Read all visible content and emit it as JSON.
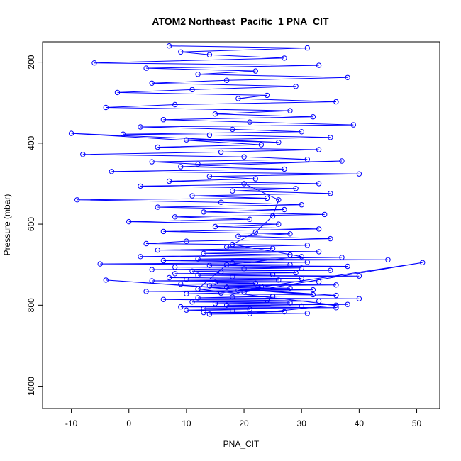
{
  "chart_data": {
    "type": "scatter",
    "title": "ATOM2 Northeast_Pacific_1 PNA_CIT",
    "xlabel": "PNA_CIT",
    "ylabel": "Pressure (mbar)",
    "xlim": [
      -15,
      54
    ],
    "ylim": [
      1055,
      150
    ],
    "y_reversed": true,
    "xticks": [
      -10,
      0,
      10,
      20,
      30,
      40,
      50
    ],
    "yticks": [
      200,
      400,
      600,
      800,
      1000
    ],
    "marker": "open-circle",
    "connect_points": true,
    "series_color": "#0000ff",
    "grid": false,
    "series": [
      {
        "x": [
          7,
          31,
          9,
          14,
          27,
          -6,
          33,
          3,
          22,
          12,
          38,
          17,
          4,
          29,
          11,
          -2,
          24,
          19,
          36,
          8,
          -4,
          28,
          15,
          32,
          6,
          21,
          39,
          2,
          18,
          30,
          -1,
          14,
          35,
          10,
          26,
          -10,
          23,
          5,
          33,
          16,
          -8,
          20,
          31,
          4,
          12,
          37,
          9,
          27,
          -3,
          40,
          14,
          22,
          7,
          33,
          2,
          29,
          18,
          35,
          11,
          24,
          -9,
          16,
          30,
          5,
          27,
          13,
          34,
          8,
          21,
          0,
          26,
          15,
          33,
          6,
          28,
          19,
          35,
          10,
          3,
          31,
          17,
          25,
          5,
          33,
          13,
          28,
          2,
          37,
          12,
          45,
          6,
          31,
          18,
          -5,
          28,
          14,
          38,
          8,
          30,
          20,
          4,
          35,
          11,
          16,
          29,
          8,
          25,
          12,
          40,
          18,
          7,
          30,
          10,
          26,
          4,
          33,
          15,
          22,
          9,
          36,
          14,
          23,
          17,
          28,
          12,
          32,
          19,
          3,
          20,
          51,
          16,
          10,
          32,
          -4,
          36,
          25,
          18,
          12,
          40,
          6,
          24,
          33,
          11,
          28,
          15,
          38,
          17,
          30,
          9,
          36,
          13,
          21,
          10,
          18,
          27,
          13,
          31,
          14,
          21,
          36,
          12,
          17,
          30,
          18,
          22,
          25,
          26,
          20
        ],
        "y": [
          160,
          165,
          175,
          182,
          190,
          202,
          208,
          215,
          222,
          230,
          238,
          245,
          252,
          260,
          268,
          275,
          282,
          290,
          298,
          305,
          312,
          320,
          328,
          335,
          342,
          348,
          355,
          360,
          366,
          372,
          378,
          380,
          386,
          392,
          398,
          376,
          404,
          410,
          416,
          422,
          428,
          434,
          440,
          446,
          452,
          444,
          458,
          464,
          470,
          476,
          482,
          488,
          494,
          500,
          506,
          512,
          518,
          524,
          530,
          536,
          540,
          546,
          552,
          558,
          564,
          570,
          576,
          582,
          588,
          594,
          600,
          606,
          612,
          618,
          624,
          630,
          636,
          642,
          648,
          652,
          656,
          660,
          664,
          668,
          672,
          676,
          680,
          682,
          686,
          688,
          690,
          694,
          696,
          698,
          700,
          702,
          704,
          706,
          708,
          710,
          712,
          714,
          716,
          718,
          720,
          722,
          724,
          726,
          728,
          730,
          732,
          734,
          736,
          738,
          740,
          742,
          744,
          746,
          748,
          750,
          752,
          754,
          756,
          758,
          760,
          762,
          764,
          766,
          768,
          695,
          770,
          772,
          774,
          738,
          776,
          778,
          780,
          782,
          784,
          786,
          788,
          790,
          792,
          794,
          796,
          798,
          800,
          802,
          804,
          806,
          808,
          810,
          812,
          814,
          816,
          818,
          820,
          822,
          821,
          800,
          760,
          700,
          680,
          650,
          620,
          580,
          540,
          500
        ]
      }
    ]
  }
}
